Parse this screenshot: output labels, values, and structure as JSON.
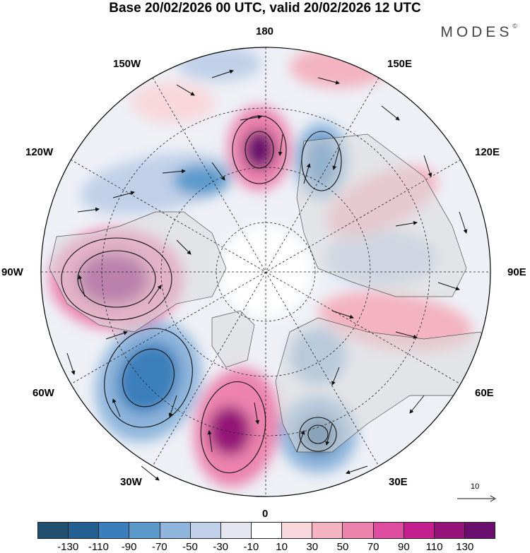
{
  "title": "Base 20/02/2026 00 UTC, valid 20/02/2026 12 UTC",
  "brand": {
    "name": "MODES",
    "mark": "©"
  },
  "longitude_labels": {
    "lon_180": "180",
    "lon_150E": "150E",
    "lon_120E": "120E",
    "lon_90E": "90E",
    "lon_60E": "60E",
    "lon_30E": "30E",
    "lon_0": "0",
    "lon_30W": "30W",
    "lon_60W": "60W",
    "lon_90W": "90W",
    "lon_120W": "120W",
    "lon_150W": "150W"
  },
  "reference_vector": {
    "label": "10"
  },
  "colorbar": {
    "colors": [
      "#1f4e6e",
      "#255f92",
      "#3a7fbc",
      "#5c9acc",
      "#8fb5dc",
      "#c0d0e8",
      "#e4e6f2",
      "#ffffff",
      "#f8d8dc",
      "#f3b3c0",
      "#ec83ad",
      "#dd4c9f",
      "#c41f8c",
      "#951378",
      "#6a0f6e"
    ],
    "tick_labels": [
      "-130",
      "-110",
      "-90",
      "-70",
      "-50",
      "-30",
      "-10",
      "10",
      "30",
      "50",
      "70",
      "90",
      "110",
      "130"
    ]
  }
}
